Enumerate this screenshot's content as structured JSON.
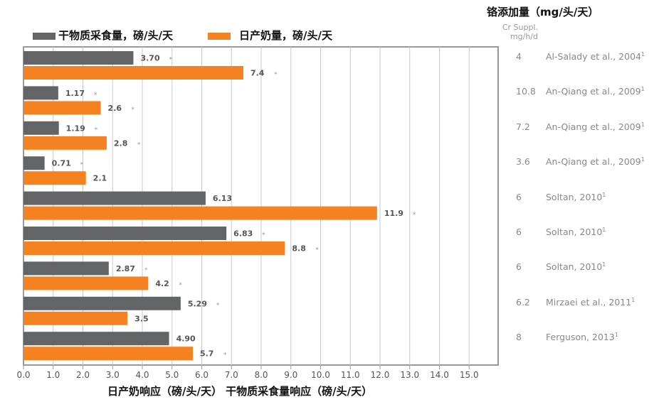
{
  "legend": {
    "dm_label": "干物质采食量，磅/头/天",
    "milk_label": "日产奶量，磅/头/天",
    "dm_color": "#636466",
    "milk_color": "#f58220"
  },
  "side_panel": {
    "title": "铬添加量（mg/头/天）",
    "subtitle": "Cr Suppl. mg/h/d",
    "rows": [
      {
        "value": "4",
        "source": "Al-Salady et al., 2004",
        "sup": "1"
      },
      {
        "value": "10.8",
        "source": "An-Qiang et al., 2009",
        "sup": "1"
      },
      {
        "value": "7.2",
        "source": "An-Qiang et al., 2009",
        "sup": "1"
      },
      {
        "value": "3.6",
        "source": "An-Qiang et al., 2009",
        "sup": "1"
      },
      {
        "value": "6",
        "source": "Soltan, 2010",
        "sup": "1"
      },
      {
        "value": "6",
        "source": "Soltan, 2010",
        "sup": "1"
      },
      {
        "value": "6",
        "source": "Soltan, 2010",
        "sup": "1"
      },
      {
        "value": "6.2",
        "source": "Mirzaei et al., 2011",
        "sup": "1"
      },
      {
        "value": "8",
        "source": "Ferguson, 2013",
        "sup": "1"
      }
    ]
  },
  "chart_data": {
    "type": "bar",
    "orientation": "horizontal",
    "xlabel": "日产奶响应（磅/头/天） 干物质采食量响应（磅/头/天）",
    "xlim": [
      0,
      16
    ],
    "ticks": [
      "0.0",
      "1.0",
      "2.0",
      "3.0",
      "4.0",
      "5.0",
      "6.0",
      "7.0",
      "8.0",
      "9.0",
      "10.0",
      "11.0",
      "12.0",
      "13.0",
      "14.0",
      "15.0"
    ],
    "series": [
      {
        "name": "干物质采食量，磅/头/天",
        "color": "#636466",
        "values": [
          3.7,
          1.17,
          1.19,
          0.71,
          6.13,
          6.83,
          2.87,
          5.29,
          4.9
        ],
        "labels": [
          "3.70",
          "1.17",
          "1.19",
          "0.71",
          "6.13",
          "6.83",
          "2.87",
          "5.29",
          "4.90"
        ],
        "significant": [
          true,
          true,
          true,
          true,
          false,
          true,
          true,
          true,
          false
        ]
      },
      {
        "name": "日产奶量，磅/头/天",
        "color": "#f58220",
        "values": [
          7.4,
          2.6,
          2.8,
          2.1,
          11.9,
          8.8,
          4.2,
          3.5,
          5.7
        ],
        "labels": [
          "7.4",
          "2.6",
          "2.8",
          "2.1",
          "11.9",
          "8.8",
          "4.2",
          "3.5",
          "5.7"
        ],
        "significant": [
          true,
          true,
          true,
          false,
          true,
          true,
          true,
          false,
          true
        ]
      }
    ],
    "marker": "*",
    "grid": true
  }
}
